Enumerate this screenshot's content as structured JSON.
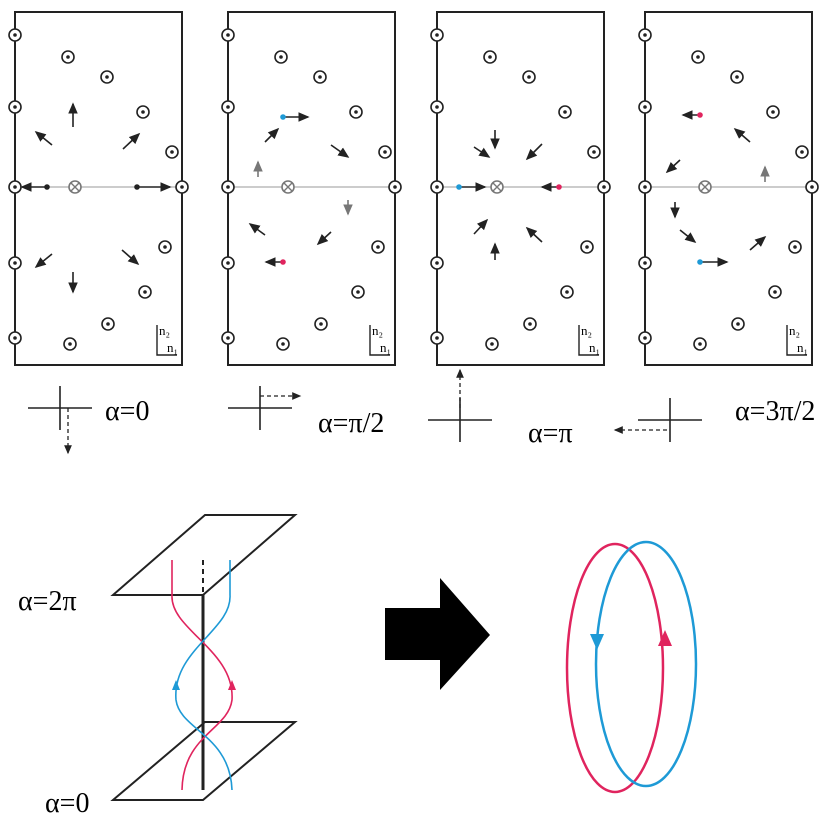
{
  "panels": [
    {
      "axis_labels": [
        "n₂",
        "n₁"
      ],
      "caption": "α=0"
    },
    {
      "axis_labels": [
        "n₂",
        "n₁"
      ],
      "caption": "α=π/2"
    },
    {
      "axis_labels": [
        "n₂",
        "n₁"
      ],
      "caption": "α=π"
    },
    {
      "axis_labels": [
        "n₂",
        "n₁"
      ],
      "caption": "α=3π/2"
    }
  ],
  "bottom": {
    "top_plane_label": "α=2π",
    "bottom_plane_label": "α=0"
  }
}
